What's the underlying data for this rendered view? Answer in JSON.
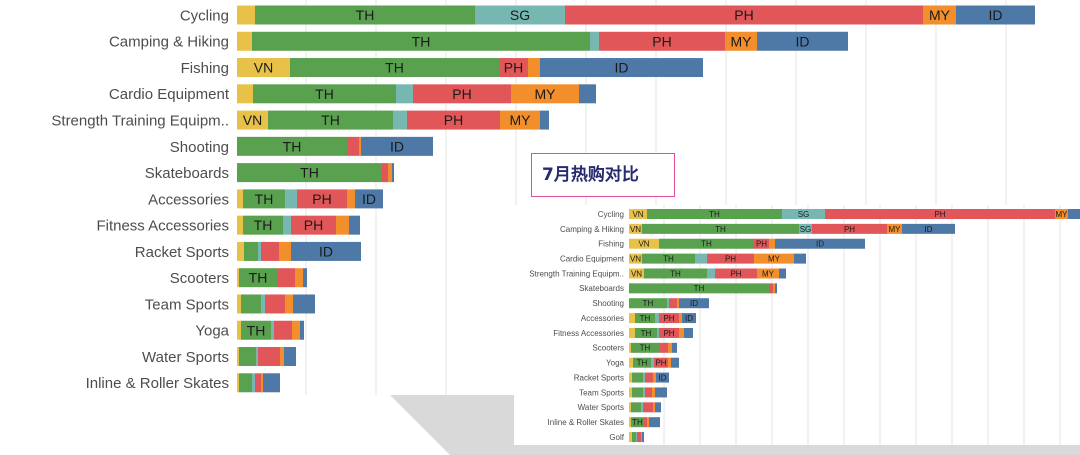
{
  "colors": {
    "VN": "#e8c248",
    "TH": "#59a14f",
    "SG": "#76b7b2",
    "PH": "#e15759",
    "MY": "#f28e2b",
    "ID": "#4e79a7"
  },
  "inset_title": "7月热购对比",
  "chart_data": [
    {
      "type": "bar",
      "orientation": "horizontal",
      "stacked": true,
      "categories": [
        "Cycling",
        "Camping & Hiking",
        "Fishing",
        "Cardio Equipment",
        "Strength Training Equipm..",
        "Shooting",
        "Skateboards",
        "Accessories",
        "Fitness Accessories",
        "Racket Sports",
        "Scooters",
        "Team Sports",
        "Yoga",
        "Water Sports",
        "Inline & Roller Skates"
      ],
      "series": [
        {
          "name": "VN",
          "values": [
            18,
            15,
            53,
            16,
            31,
            0,
            0,
            6,
            6,
            7,
            2,
            4,
            4,
            2,
            2
          ]
        },
        {
          "name": "TH",
          "values": [
            220,
            338,
            209,
            143,
            125,
            110,
            145,
            42,
            40,
            14,
            38,
            20,
            30,
            17,
            13
          ]
        },
        {
          "name": "SG",
          "values": [
            90,
            9,
            0,
            17,
            14,
            0,
            0,
            12,
            8,
            3,
            0,
            4,
            3,
            2,
            3
          ]
        },
        {
          "name": "PH",
          "values": [
            358,
            126,
            29,
            98,
            93,
            12,
            6,
            50,
            45,
            18,
            18,
            20,
            18,
            22,
            6
          ]
        },
        {
          "name": "MY",
          "values": [
            33,
            32,
            12,
            68,
            40,
            2,
            4,
            8,
            13,
            12,
            8,
            8,
            8,
            4,
            2
          ]
        },
        {
          "name": "ID",
          "values": [
            79,
            91,
            163,
            17,
            9,
            72,
            2,
            28,
            11,
            70,
            4,
            22,
            4,
            12,
            17
          ]
        }
      ],
      "grid": true
    },
    {
      "type": "bar",
      "orientation": "horizontal",
      "stacked": true,
      "categories": [
        "Cycling",
        "Camping & Hiking",
        "Fishing",
        "Cardio Equipment",
        "Strength Training Equipm..",
        "Skateboards",
        "Shooting",
        "Accessories",
        "Fitness Accessories",
        "Scooters",
        "Yoga",
        "Racket Sports",
        "Team Sports",
        "Water Sports",
        "Inline & Roller Skates",
        "Golf"
      ],
      "series": [
        {
          "name": "VN",
          "values": [
            18,
            13,
            30,
            13,
            15,
            0,
            0,
            6,
            6,
            2,
            4,
            3,
            3,
            2,
            2,
            3
          ]
        },
        {
          "name": "TH",
          "values": [
            135,
            157,
            95,
            53,
            63,
            140,
            38,
            20,
            22,
            28,
            18,
            11,
            11,
            10,
            13,
            4
          ]
        },
        {
          "name": "SG",
          "values": [
            43,
            13,
            0,
            12,
            8,
            0,
            2,
            4,
            2,
            0,
            3,
            2,
            2,
            2,
            0,
            1
          ]
        },
        {
          "name": "PH",
          "values": [
            230,
            75,
            15,
            47,
            42,
            4,
            8,
            20,
            20,
            9,
            14,
            8,
            7,
            10,
            3,
            4
          ]
        },
        {
          "name": "MY",
          "values": [
            13,
            15,
            6,
            40,
            22,
            2,
            2,
            3,
            5,
            4,
            3,
            3,
            3,
            2,
            2,
            1
          ]
        },
        {
          "name": "ID",
          "values": [
            48,
            53,
            90,
            12,
            7,
            2,
            30,
            14,
            9,
            5,
            8,
            13,
            12,
            6,
            11,
            2
          ]
        }
      ],
      "grid": true
    }
  ]
}
